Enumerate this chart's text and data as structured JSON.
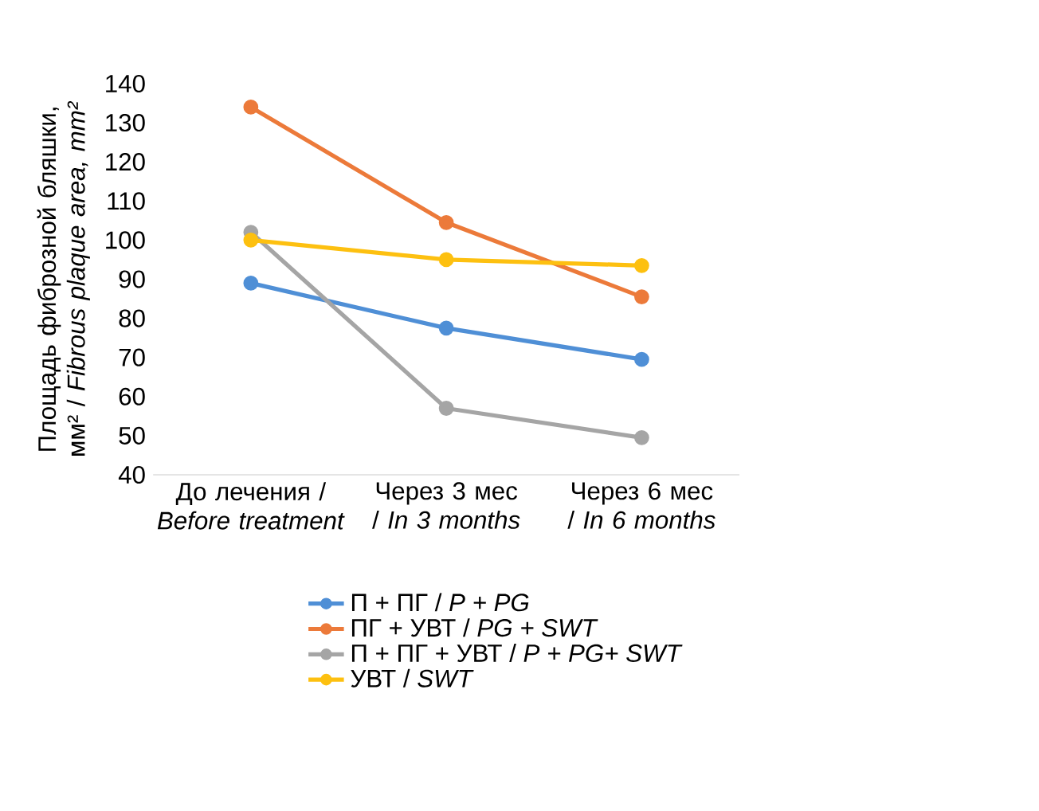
{
  "chart_data": {
    "type": "line",
    "ylabel": "Площадь фиброзной бляшки, мм² / *Fibrous plaque area, mm²*",
    "categories": [
      "До лечения / *Before treatment*",
      "Через 3 мес / *In 3 months*",
      "Через 6 мес / *In 6 months*"
    ],
    "series": [
      {
        "name": "П + ПГ / *P + PG*",
        "color": "#4f8fd6",
        "values": [
          89,
          77.5,
          69.5
        ]
      },
      {
        "name": "ПГ + УВТ / *PG + SWT*",
        "color": "#ec7a3a",
        "values": [
          134,
          104.5,
          85.5
        ]
      },
      {
        "name": "П + ПГ + УВТ / *P + PG+ SWT*",
        "color": "#a5a5a5",
        "values": [
          102,
          57,
          49.5
        ]
      },
      {
        "name": "УВТ / *SWT*",
        "color": "#fdc010",
        "values": [
          100,
          95,
          93.5
        ]
      }
    ],
    "ylim": [
      40,
      140
    ],
    "yticks": [
      40,
      50,
      60,
      70,
      80,
      90,
      100,
      110,
      120,
      130,
      140
    ],
    "marker": "circle",
    "line_style": "solid",
    "legend": "bottom",
    "grid": false
  }
}
